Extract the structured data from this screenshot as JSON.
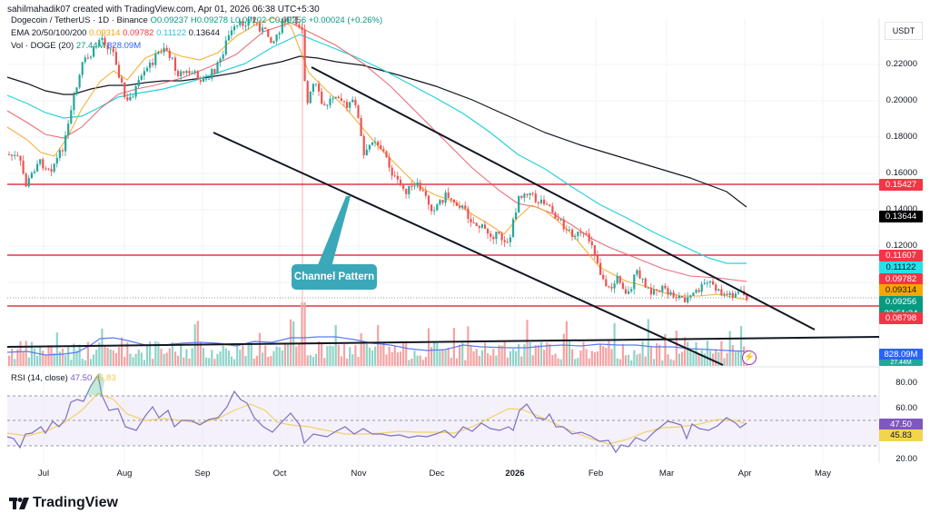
{
  "credit": "sahilmahadik07 created with TradingView.com, Apr 01, 2026 06:38 UTC+5:30",
  "symbol": {
    "name": "Dogecoin / TetherUS · 1D · Binance",
    "open": "O0.09237",
    "high": "H0.09278",
    "low": "L0.09202",
    "close": "C0.09256",
    "change": "+0.00024 (+0.26%)"
  },
  "ema": {
    "label": "EMA 20/50/100/200",
    "ema20": "0.09314",
    "ema50": "0.09782",
    "ema100": "0.11122",
    "ema200": "0.13644"
  },
  "volume": {
    "label": "Vol · DOGE (20)",
    "value": "27.44M",
    "ma": "828.09M"
  },
  "rsi": {
    "label": "RSI (14, close)",
    "value": "47.50",
    "ma": "45.83"
  },
  "price_axis": {
    "unit": "USDT",
    "ticks": [
      "0.22000",
      "0.20000",
      "0.18000",
      "0.16000",
      "0.14000",
      "0.12000"
    ],
    "tags": [
      {
        "label": "0.15427",
        "color": "#f23645"
      },
      {
        "label": "0.13644",
        "color": "#000000"
      },
      {
        "label": "0.11607",
        "color": "#f23645"
      },
      {
        "label": "0.11122",
        "color": "#26e0ea"
      },
      {
        "label": "0.09782",
        "color": "#f23645"
      },
      {
        "label": "0.09314",
        "color": "#f7a600"
      },
      {
        "label": "0.09256",
        "sub": "22:51:34",
        "color": "#089981"
      },
      {
        "label": "0.08798",
        "color": "#f23645"
      }
    ]
  },
  "volume_axis": {
    "ma_tag": "828.09M",
    "vol_tag": "27.44M"
  },
  "rsi_axis": {
    "ticks": [
      "80.00",
      "60.00",
      "20.00"
    ],
    "rsi_tag": "47.50",
    "ma_tag": "45.83"
  },
  "time_axis": [
    "Jul",
    "Aug",
    "Sep",
    "Oct",
    "Nov",
    "Dec",
    "2026",
    "Feb",
    "Mar",
    "Apr",
    "May"
  ],
  "annotation": "Channel Pattern",
  "logo": "TradingView",
  "chart_data": {
    "type": "candlestick",
    "title": "Dogecoin / TetherUS · 1D · Binance",
    "xlabel": "",
    "ylabel": "USDT",
    "ylim": [
      0.08,
      0.235
    ],
    "x": [
      "Jul",
      "Aug",
      "Sep",
      "Oct",
      "Nov",
      "Dec",
      "2026",
      "Feb",
      "Mar",
      "Apr",
      "May"
    ],
    "approx_close_by_month": [
      0.165,
      0.205,
      0.22,
      0.235,
      0.18,
      0.145,
      0.15,
      0.105,
      0.095,
      0.0926,
      null
    ],
    "horizontal_levels": [
      0.15427,
      0.11607,
      0.08798
    ],
    "channel": {
      "upper_start": [
        0.215,
        "Oct"
      ],
      "upper_end": [
        0.088,
        "Apr"
      ],
      "lower_start": [
        0.175,
        "Sep"
      ],
      "lower_end": [
        0.06,
        "Mar"
      ]
    },
    "series": [
      {
        "name": "EMA 20",
        "last": 0.09314,
        "color": "#f7a600"
      },
      {
        "name": "EMA 50",
        "last": 0.09782,
        "color": "#f23645"
      },
      {
        "name": "EMA 100",
        "last": 0.11122,
        "color": "#26c6da"
      },
      {
        "name": "EMA 200",
        "last": 0.13644,
        "color": "#131722"
      },
      {
        "name": "Volume MA",
        "last": "828.09M",
        "color": "#2962ff"
      },
      {
        "name": "RSI",
        "last": 47.5,
        "color": "#7e57c2"
      },
      {
        "name": "RSI MA",
        "last": 45.83,
        "color": "#f2c94c"
      }
    ],
    "current_price": 0.09256,
    "countdown": "22:51:34",
    "rsi_levels": [
      70,
      50,
      30
    ],
    "legend_position": "top-left",
    "grid": true
  }
}
